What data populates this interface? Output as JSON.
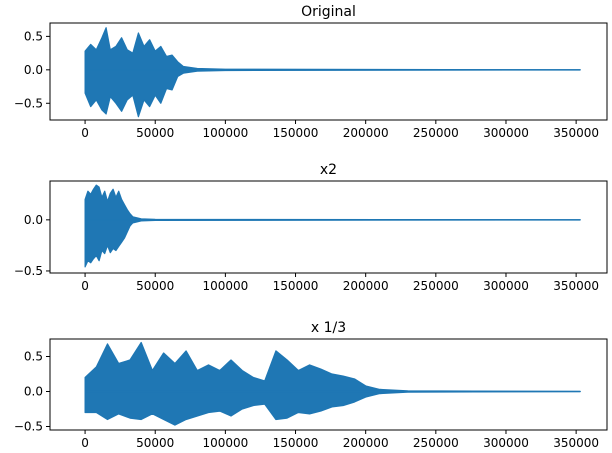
{
  "chart_data": [
    {
      "type": "line",
      "title": "Original",
      "xlabel": "",
      "ylabel": "",
      "xlim": [
        -25000,
        372000
      ],
      "ylim": [
        -0.75,
        0.7
      ],
      "xticks": [
        0,
        50000,
        100000,
        150000,
        200000,
        250000,
        300000,
        350000
      ],
      "xtick_labels": [
        "0",
        "50000",
        "100000",
        "150000",
        "200000",
        "250000",
        "300000",
        "350000"
      ],
      "yticks": [
        -0.5,
        0.0,
        0.5
      ],
      "ytick_labels": [
        "−0.5",
        "0.0",
        "0.5"
      ],
      "grid": false,
      "color": "#1f77b4",
      "series": [
        {
          "x": [
            0,
            4000,
            8000,
            12000,
            15000,
            18000,
            22000,
            26000,
            30000,
            34000,
            38000,
            42000,
            46000,
            50000,
            54000,
            58000,
            62000,
            66000,
            70000,
            80000,
            100000,
            353000
          ],
          "max": [
            0.28,
            0.38,
            0.3,
            0.48,
            0.63,
            0.3,
            0.35,
            0.48,
            0.3,
            0.25,
            0.55,
            0.35,
            0.45,
            0.28,
            0.35,
            0.2,
            0.22,
            0.12,
            0.05,
            0.02,
            0.01,
            0.0
          ],
          "min": [
            -0.35,
            -0.55,
            -0.45,
            -0.6,
            -0.66,
            -0.4,
            -0.5,
            -0.62,
            -0.45,
            -0.38,
            -0.7,
            -0.45,
            -0.55,
            -0.38,
            -0.5,
            -0.28,
            -0.3,
            -0.1,
            -0.05,
            -0.02,
            -0.01,
            0.0
          ]
        }
      ]
    },
    {
      "type": "line",
      "title": "x2",
      "xlabel": "",
      "ylabel": "",
      "xlim": [
        -25000,
        372000
      ],
      "ylim": [
        -0.52,
        0.38
      ],
      "xticks": [
        0,
        50000,
        100000,
        150000,
        200000,
        250000,
        300000,
        350000
      ],
      "xtick_labels": [
        "0",
        "50000",
        "100000",
        "150000",
        "200000",
        "250000",
        "300000",
        "350000"
      ],
      "yticks": [
        -0.5,
        0.0
      ],
      "ytick_labels": [
        "−0.5",
        "0.0"
      ],
      "grid": false,
      "color": "#1f77b4",
      "series": [
        {
          "x": [
            0,
            2000,
            4000,
            6000,
            8000,
            10000,
            12000,
            14000,
            16000,
            18000,
            20000,
            22000,
            24000,
            26000,
            28000,
            30000,
            32000,
            34000,
            40000,
            50000,
            353000
          ],
          "max": [
            0.2,
            0.28,
            0.25,
            0.3,
            0.34,
            0.32,
            0.22,
            0.28,
            0.18,
            0.26,
            0.3,
            0.22,
            0.28,
            0.2,
            0.15,
            0.1,
            0.06,
            0.03,
            0.01,
            0.005,
            0.0
          ],
          "min": [
            -0.46,
            -0.4,
            -0.42,
            -0.38,
            -0.35,
            -0.4,
            -0.3,
            -0.33,
            -0.25,
            -0.32,
            -0.28,
            -0.3,
            -0.26,
            -0.22,
            -0.18,
            -0.12,
            -0.06,
            -0.03,
            -0.01,
            -0.005,
            0.0
          ]
        }
      ]
    },
    {
      "type": "line",
      "title": "x 1/3",
      "xlabel": "",
      "ylabel": "",
      "xlim": [
        -25000,
        372000
      ],
      "ylim": [
        -0.55,
        0.75
      ],
      "xticks": [
        0,
        50000,
        100000,
        150000,
        200000,
        250000,
        300000,
        350000
      ],
      "xtick_labels": [
        "0",
        "50000",
        "100000",
        "150000",
        "200000",
        "250000",
        "300000",
        "350000"
      ],
      "yticks": [
        -0.5,
        0.0,
        0.5
      ],
      "ytick_labels": [
        "−0.5",
        "0.0",
        "0.5"
      ],
      "grid": false,
      "color": "#1f77b4",
      "series": [
        {
          "x": [
            0,
            8000,
            16000,
            24000,
            32000,
            40000,
            48000,
            56000,
            64000,
            72000,
            80000,
            88000,
            96000,
            104000,
            112000,
            120000,
            128000,
            136000,
            144000,
            152000,
            160000,
            168000,
            176000,
            184000,
            192000,
            200000,
            210000,
            230000,
            353000
          ],
          "max": [
            0.2,
            0.35,
            0.68,
            0.4,
            0.45,
            0.7,
            0.3,
            0.55,
            0.4,
            0.58,
            0.3,
            0.38,
            0.3,
            0.45,
            0.3,
            0.2,
            0.15,
            0.58,
            0.45,
            0.3,
            0.38,
            0.32,
            0.25,
            0.22,
            0.18,
            0.08,
            0.03,
            0.01,
            0.0
          ],
          "min": [
            -0.3,
            -0.3,
            -0.4,
            -0.32,
            -0.38,
            -0.4,
            -0.32,
            -0.4,
            -0.48,
            -0.4,
            -0.35,
            -0.3,
            -0.28,
            -0.35,
            -0.25,
            -0.2,
            -0.18,
            -0.4,
            -0.38,
            -0.3,
            -0.32,
            -0.28,
            -0.22,
            -0.2,
            -0.15,
            -0.08,
            -0.03,
            -0.01,
            0.0
          ]
        }
      ]
    }
  ]
}
